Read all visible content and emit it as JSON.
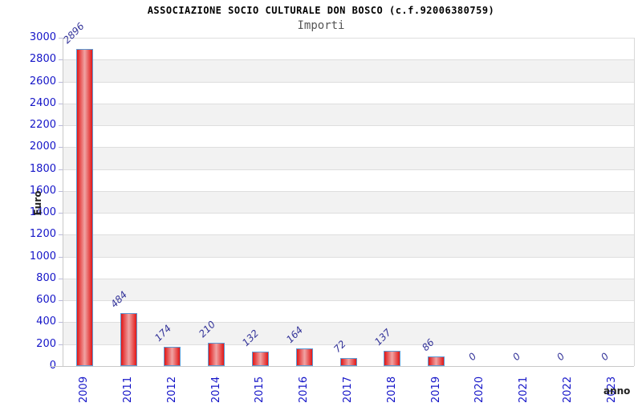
{
  "header": {
    "title": "ASSOCIAZIONE SOCIO CULTURALE DON BOSCO (c.f.92006380759)",
    "subtitle": "Importi"
  },
  "chart_data": {
    "type": "bar",
    "title": "ASSOCIAZIONE SOCIO CULTURALE DON BOSCO (c.f.92006380759)",
    "subtitle": "Importi",
    "categories": [
      "2009",
      "2011",
      "2012",
      "2014",
      "2015",
      "2016",
      "2017",
      "2018",
      "2019",
      "2020",
      "2021",
      "2022",
      "2023"
    ],
    "values": [
      2896,
      484,
      174,
      210,
      132,
      164,
      72,
      137,
      86,
      0,
      0,
      0,
      0
    ],
    "xlabel": "anno",
    "ylabel": "Euro",
    "ylim": [
      0,
      3000
    ],
    "ystep": 200,
    "grid": "horizontal-bands",
    "legend": "none",
    "colors": {
      "bar_edge": "#e11717",
      "bar_center": "#f0a4a4",
      "bar_border": "#5b9bd5",
      "axis_text": "#1515c8",
      "value_text": "#333399",
      "band_gray": "#f2f2f2",
      "gridline": "#dedede",
      "axis_line": "#c9c9c9",
      "title_color": "#000000",
      "subtitle_color": "#555555"
    }
  }
}
